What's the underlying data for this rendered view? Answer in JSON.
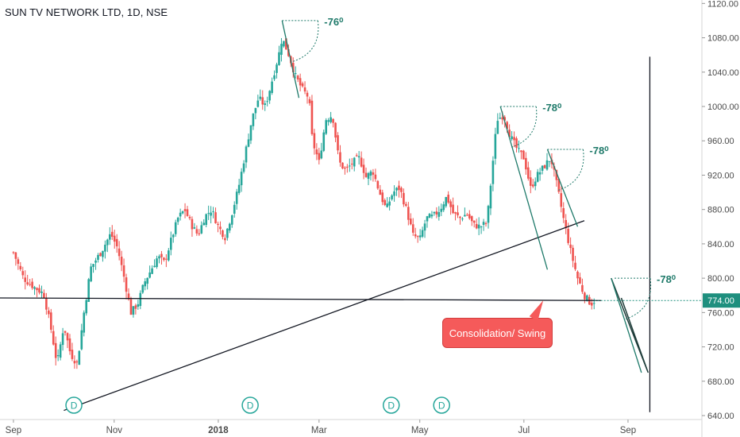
{
  "header": {
    "title": "SUN TV NETWORK LTD, 1D, NSE"
  },
  "callout": {
    "text": "Consolidation/ Swing"
  },
  "colors": {
    "up": "#26a69a",
    "down": "#ef5350",
    "line": "#131722",
    "angle": "#1f7a6a",
    "axis_text": "#4a4a4a",
    "price_badge": "#1e8f7e"
  },
  "chart_data": {
    "type": "candlestick",
    "title": "SUN TV NETWORK LTD, 1D, NSE",
    "y_axis": {
      "ticks": [
        640,
        680,
        720,
        760,
        800,
        840,
        880,
        920,
        960,
        1000,
        1040,
        1080,
        1120
      ],
      "labels": [
        "640.00",
        "680.00",
        "720.00",
        "760.00",
        "800.00",
        "840.00",
        "880.00",
        "920.00",
        "960.00",
        "1000.00",
        "1040.00",
        "1080.00",
        "1120.00"
      ],
      "range": [
        628,
        1124
      ]
    },
    "x_axis": {
      "labels": [
        "Sep",
        "Nov",
        "2018",
        "Mar",
        "May",
        "Jul",
        "Sep"
      ],
      "bold": [
        "2018"
      ]
    },
    "last_price": {
      "value": 774,
      "label": "774.00"
    },
    "close_path": [
      {
        "d": 0,
        "v": 830
      },
      {
        "d": 6,
        "v": 800
      },
      {
        "d": 12,
        "v": 790
      },
      {
        "d": 18,
        "v": 782
      },
      {
        "d": 22,
        "v": 745
      },
      {
        "d": 26,
        "v": 700
      },
      {
        "d": 30,
        "v": 745
      },
      {
        "d": 34,
        "v": 712
      },
      {
        "d": 38,
        "v": 700
      },
      {
        "d": 42,
        "v": 760
      },
      {
        "d": 46,
        "v": 812
      },
      {
        "d": 52,
        "v": 830
      },
      {
        "d": 58,
        "v": 852
      },
      {
        "d": 62,
        "v": 835
      },
      {
        "d": 66,
        "v": 800
      },
      {
        "d": 70,
        "v": 760
      },
      {
        "d": 74,
        "v": 770
      },
      {
        "d": 78,
        "v": 795
      },
      {
        "d": 82,
        "v": 810
      },
      {
        "d": 86,
        "v": 825
      },
      {
        "d": 90,
        "v": 818
      },
      {
        "d": 94,
        "v": 845
      },
      {
        "d": 98,
        "v": 870
      },
      {
        "d": 102,
        "v": 880
      },
      {
        "d": 106,
        "v": 862
      },
      {
        "d": 110,
        "v": 850
      },
      {
        "d": 114,
        "v": 872
      },
      {
        "d": 118,
        "v": 880
      },
      {
        "d": 122,
        "v": 860
      },
      {
        "d": 126,
        "v": 848
      },
      {
        "d": 130,
        "v": 875
      },
      {
        "d": 134,
        "v": 905
      },
      {
        "d": 138,
        "v": 945
      },
      {
        "d": 142,
        "v": 985
      },
      {
        "d": 146,
        "v": 1010
      },
      {
        "d": 150,
        "v": 1000
      },
      {
        "d": 154,
        "v": 1030
      },
      {
        "d": 158,
        "v": 1060
      },
      {
        "d": 160,
        "v": 1080
      },
      {
        "d": 164,
        "v": 1060
      },
      {
        "d": 168,
        "v": 1035
      },
      {
        "d": 172,
        "v": 1020
      },
      {
        "d": 176,
        "v": 1010
      },
      {
        "d": 178,
        "v": 960
      },
      {
        "d": 182,
        "v": 935
      },
      {
        "d": 186,
        "v": 985
      },
      {
        "d": 190,
        "v": 990
      },
      {
        "d": 194,
        "v": 935
      },
      {
        "d": 198,
        "v": 925
      },
      {
        "d": 202,
        "v": 935
      },
      {
        "d": 206,
        "v": 940
      },
      {
        "d": 210,
        "v": 918
      },
      {
        "d": 214,
        "v": 925
      },
      {
        "d": 218,
        "v": 900
      },
      {
        "d": 222,
        "v": 880
      },
      {
        "d": 226,
        "v": 900
      },
      {
        "d": 230,
        "v": 905
      },
      {
        "d": 234,
        "v": 880
      },
      {
        "d": 238,
        "v": 850
      },
      {
        "d": 242,
        "v": 845
      },
      {
        "d": 246,
        "v": 870
      },
      {
        "d": 250,
        "v": 872
      },
      {
        "d": 254,
        "v": 880
      },
      {
        "d": 258,
        "v": 895
      },
      {
        "d": 262,
        "v": 875
      },
      {
        "d": 266,
        "v": 870
      },
      {
        "d": 270,
        "v": 875
      },
      {
        "d": 274,
        "v": 862
      },
      {
        "d": 278,
        "v": 860
      },
      {
        "d": 282,
        "v": 865
      },
      {
        "d": 286,
        "v": 945
      },
      {
        "d": 288,
        "v": 985
      },
      {
        "d": 292,
        "v": 990
      },
      {
        "d": 296,
        "v": 965
      },
      {
        "d": 300,
        "v": 950
      },
      {
        "d": 304,
        "v": 940
      },
      {
        "d": 308,
        "v": 905
      },
      {
        "d": 312,
        "v": 920
      },
      {
        "d": 316,
        "v": 930
      },
      {
        "d": 320,
        "v": 940
      },
      {
        "d": 324,
        "v": 905
      },
      {
        "d": 328,
        "v": 865
      },
      {
        "d": 332,
        "v": 830
      },
      {
        "d": 336,
        "v": 800
      },
      {
        "d": 340,
        "v": 780
      },
      {
        "d": 344,
        "v": 770
      },
      {
        "d": 346,
        "v": 774
      }
    ],
    "dividends": [
      {
        "label": "D",
        "d": 36
      },
      {
        "label": "D",
        "d": 141
      },
      {
        "label": "D",
        "d": 225
      },
      {
        "label": "D",
        "d": 255
      }
    ],
    "annotations": [
      {
        "label": "-76⁰",
        "at_d": 160,
        "at_v": 1100
      },
      {
        "label": "-78⁰",
        "at_d": 290,
        "at_v": 1000
      },
      {
        "label": "-78⁰",
        "at_d": 318,
        "at_v": 950
      },
      {
        "label": "-78⁰",
        "at_d": 358,
        "at_v": 800
      }
    ]
  }
}
